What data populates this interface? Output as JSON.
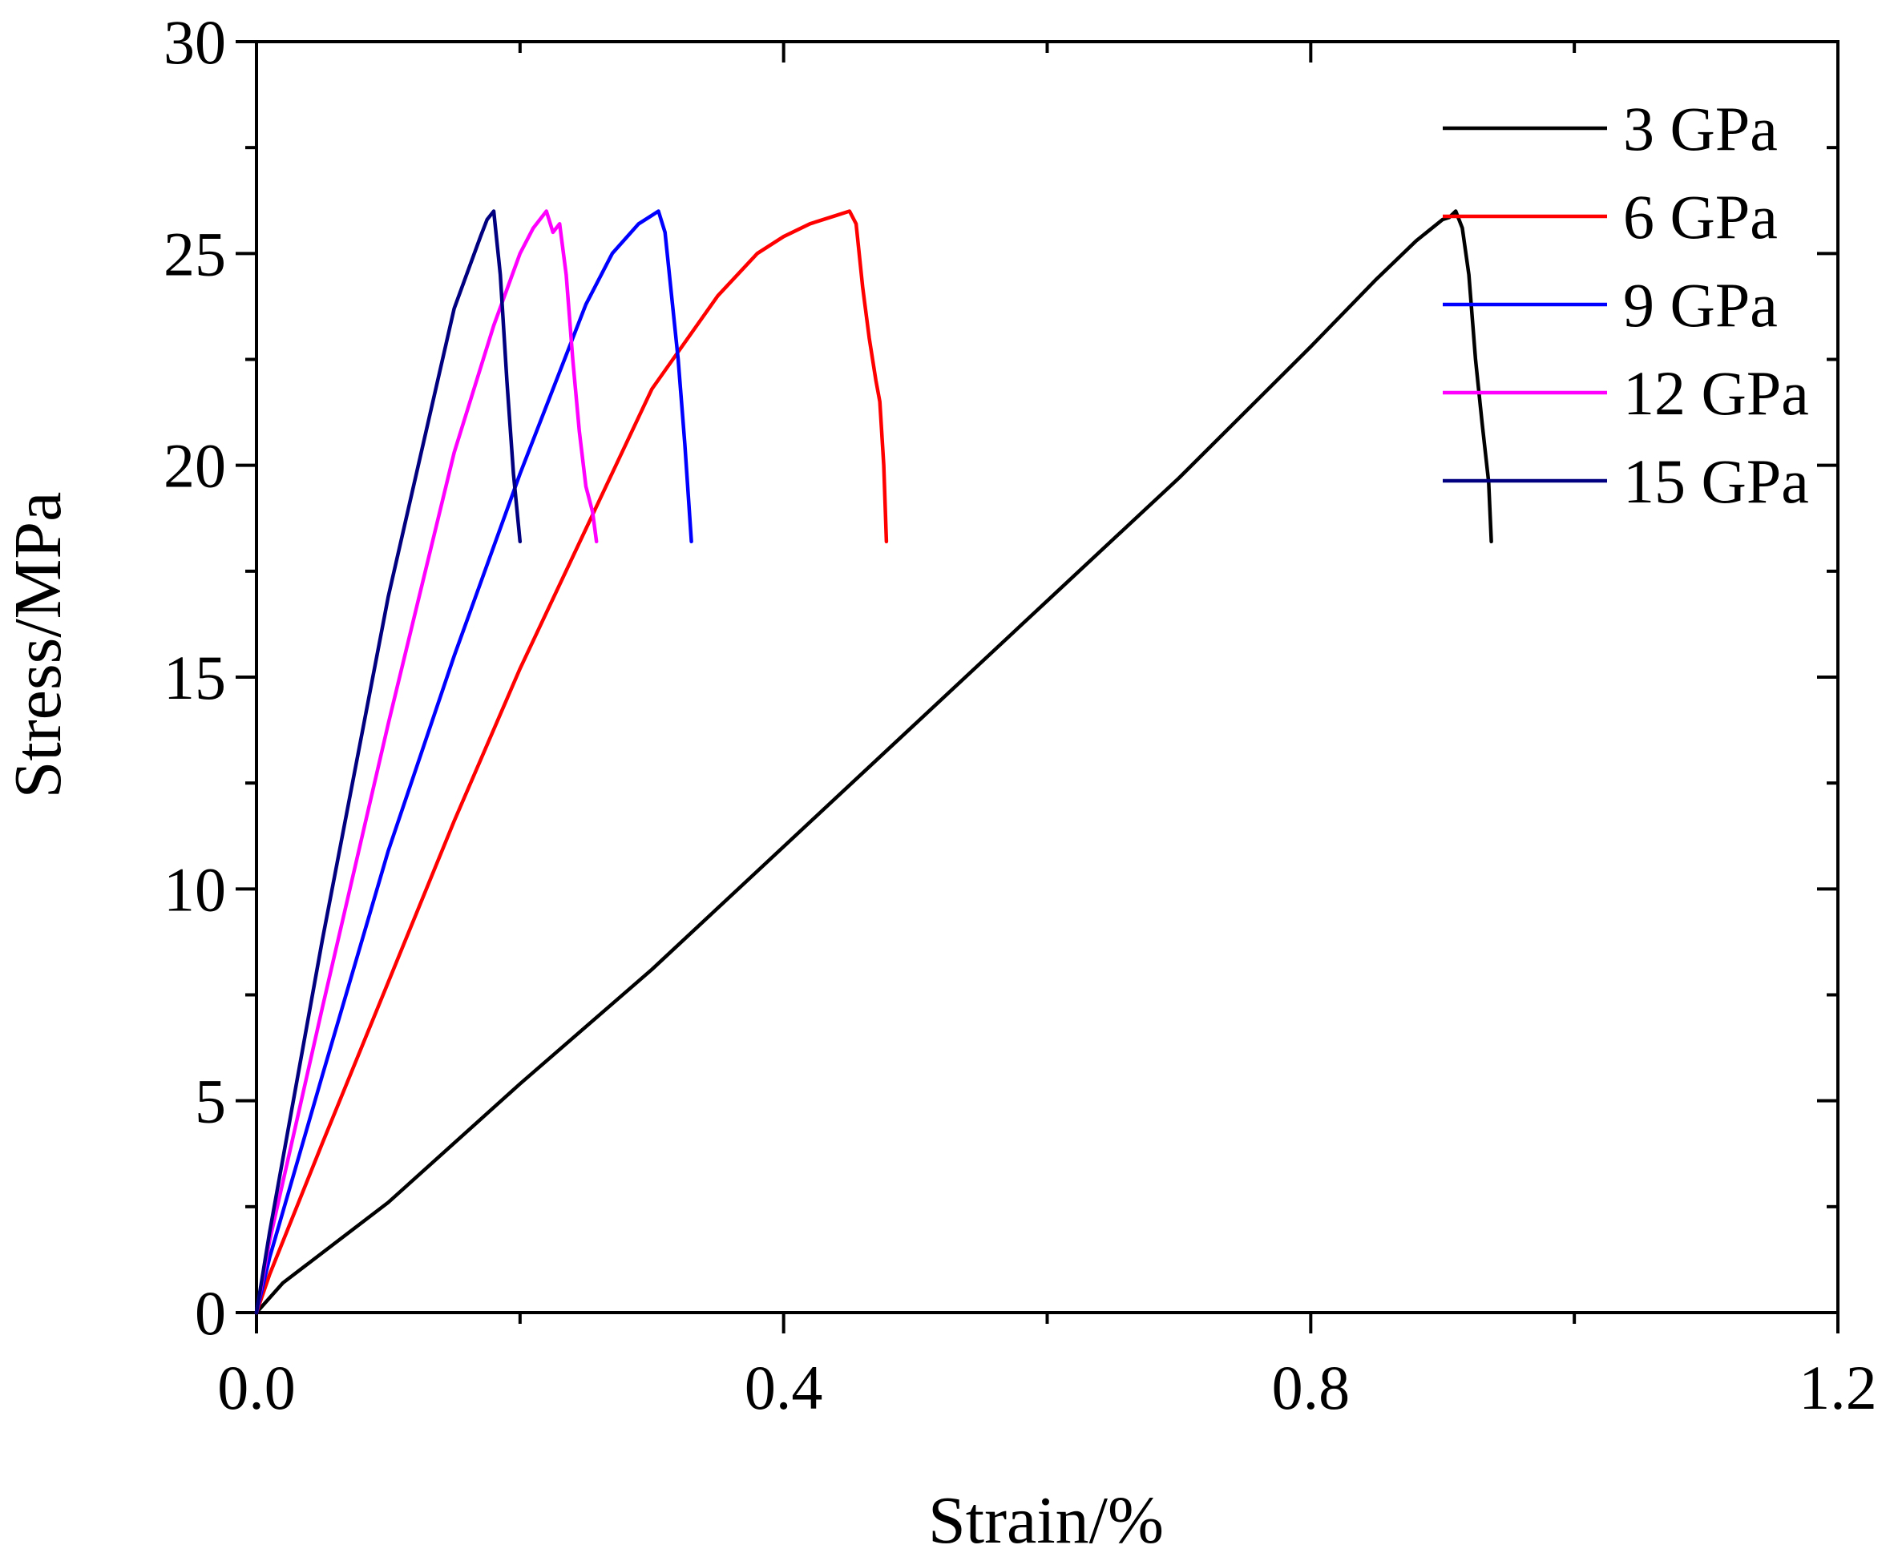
{
  "chart_data": {
    "type": "line",
    "title": "",
    "xlabel": "Strain/%",
    "ylabel": "Stress/MPa",
    "xlim": [
      0,
      1.2
    ],
    "ylim": [
      0,
      30
    ],
    "xticks": [
      0.0,
      0.4,
      0.8,
      1.2
    ],
    "xtick_labels": [
      "0.0",
      "0.4",
      "0.8",
      "1.2"
    ],
    "yticks": [
      0,
      5,
      10,
      15,
      20,
      25,
      30
    ],
    "ytick_labels": [
      "0",
      "5",
      "10",
      "15",
      "20",
      "25",
      "30"
    ],
    "grid": false,
    "legend_position": "top-right",
    "series": [
      {
        "name": "3 GPa",
        "color": "#000000",
        "x": [
          0,
          0.02,
          0.1,
          0.2,
          0.3,
          0.4,
          0.5,
          0.6,
          0.7,
          0.8,
          0.85,
          0.88,
          0.9,
          0.905,
          0.91,
          0.915,
          0.92,
          0.925,
          0.93,
          0.935,
          0.937
        ],
        "y": [
          0,
          0.7,
          2.6,
          5.4,
          8.1,
          11.0,
          13.9,
          16.8,
          19.7,
          22.8,
          24.4,
          25.3,
          25.8,
          25.85,
          26.0,
          25.6,
          24.5,
          22.5,
          21.0,
          19.6,
          18.2
        ]
      },
      {
        "name": "6 GPa",
        "color": "#ff0000",
        "x": [
          0,
          0.01,
          0.05,
          0.1,
          0.15,
          0.2,
          0.25,
          0.3,
          0.35,
          0.38,
          0.4,
          0.42,
          0.44,
          0.45,
          0.455,
          0.46,
          0.465,
          0.47,
          0.473,
          0.476,
          0.478
        ],
        "y": [
          0,
          0.9,
          4.0,
          7.8,
          11.6,
          15.2,
          18.5,
          21.8,
          24.0,
          25.0,
          25.4,
          25.7,
          25.9,
          26.0,
          25.7,
          24.2,
          23.0,
          22.0,
          21.5,
          20.0,
          18.2
        ]
      },
      {
        "name": "9 GPa",
        "color": "#0000ff",
        "x": [
          0,
          0.01,
          0.05,
          0.1,
          0.15,
          0.2,
          0.25,
          0.27,
          0.29,
          0.3,
          0.305,
          0.31,
          0.315,
          0.32,
          0.325,
          0.33
        ],
        "y": [
          0,
          1.3,
          5.6,
          10.9,
          15.5,
          19.8,
          23.8,
          25.0,
          25.7,
          25.9,
          26.0,
          25.5,
          24.0,
          22.5,
          20.5,
          18.2
        ]
      },
      {
        "name": "12 GPa",
        "color": "#ff00ff",
        "x": [
          0,
          0.01,
          0.05,
          0.1,
          0.15,
          0.18,
          0.2,
          0.21,
          0.22,
          0.225,
          0.23,
          0.235,
          0.24,
          0.245,
          0.25,
          0.255,
          0.258
        ],
        "y": [
          0,
          1.7,
          7.2,
          13.9,
          20.3,
          23.3,
          25.0,
          25.6,
          26.0,
          25.5,
          25.7,
          24.5,
          22.5,
          20.8,
          19.5,
          18.9,
          18.2
        ]
      },
      {
        "name": "15 GPa",
        "color": "#000080",
        "x": [
          0,
          0.01,
          0.05,
          0.1,
          0.15,
          0.17,
          0.175,
          0.18,
          0.185,
          0.19,
          0.195,
          0.2
        ],
        "y": [
          0,
          1.9,
          8.8,
          16.9,
          23.7,
          25.4,
          25.8,
          26.0,
          24.5,
          22.0,
          19.8,
          18.2
        ]
      }
    ]
  }
}
